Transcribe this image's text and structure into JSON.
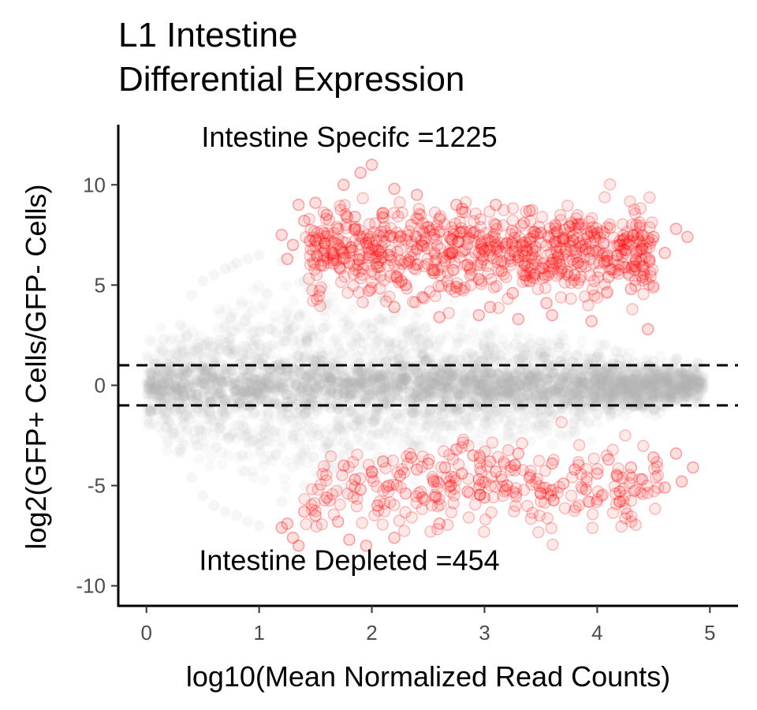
{
  "chart_data": {
    "type": "scatter",
    "title_lines": [
      "L1 Intestine",
      "Differential Expression"
    ],
    "xlabel": "log10(Mean Normalized Read Counts)",
    "ylabel": "log2(GFP+ Cells/GFP- Cells)",
    "xlim": [
      -0.25,
      5.25
    ],
    "ylim": [
      -11,
      13
    ],
    "x_ticks": [
      0,
      1,
      2,
      3,
      4,
      5
    ],
    "x_tick_labels": [
      "0",
      "1",
      "2",
      "3",
      "4",
      "5"
    ],
    "y_ticks": [
      -10,
      -5,
      0,
      5,
      10
    ],
    "y_tick_labels": [
      "-10",
      "-5",
      "0",
      "5",
      "10"
    ],
    "grid": false,
    "threshold_lines": [
      1,
      -1
    ],
    "annotations": [
      {
        "text": "Intestine Specifc =1225",
        "x": 1.8,
        "y": 11.9
      },
      {
        "text": "Intestine Depleted =454",
        "x": 1.8,
        "y": -9.2
      }
    ],
    "colors": {
      "background_points": "#b3b3b3",
      "significant_points": "#ff0000",
      "threshold_line": "#000000"
    },
    "series": [
      {
        "role": "not-significant",
        "description_points": "dense grey cloud, |log2FC| mostly < 5, x from 0 to 5",
        "points": [
          [
            0.0,
            0.0
          ],
          [
            0.05,
            0.5
          ],
          [
            0.1,
            -0.6
          ],
          [
            0.2,
            1.5
          ],
          [
            0.2,
            -1.8
          ],
          [
            0.3,
            3.0
          ],
          [
            0.3,
            -3.2
          ],
          [
            0.4,
            4.5
          ],
          [
            0.4,
            -4.6
          ],
          [
            0.5,
            5.2
          ],
          [
            0.5,
            -5.5
          ],
          [
            0.6,
            5.5
          ],
          [
            0.7,
            5.8
          ],
          [
            0.8,
            6.1
          ],
          [
            0.9,
            6.3
          ],
          [
            1.0,
            6.5
          ],
          [
            0.6,
            -6.0
          ],
          [
            0.7,
            -6.3
          ],
          [
            0.8,
            -6.5
          ],
          [
            0.9,
            -6.8
          ],
          [
            1.0,
            -7.0
          ],
          [
            1.2,
            6.2
          ],
          [
            1.4,
            5.2
          ],
          [
            1.6,
            4.0
          ],
          [
            1.8,
            3.0
          ],
          [
            2.0,
            2.5
          ],
          [
            1.2,
            -5.8
          ],
          [
            1.4,
            -5.0
          ],
          [
            1.6,
            -4.0
          ],
          [
            1.8,
            -3.0
          ],
          [
            2.0,
            -2.5
          ],
          [
            2.5,
            2.0
          ],
          [
            3.0,
            1.8
          ],
          [
            3.5,
            1.6
          ],
          [
            4.0,
            1.4
          ],
          [
            4.5,
            1.2
          ],
          [
            4.9,
            0.9
          ],
          [
            2.5,
            -2.0
          ],
          [
            3.0,
            -1.8
          ],
          [
            3.5,
            -1.6
          ],
          [
            4.0,
            -1.4
          ],
          [
            4.5,
            -1.2
          ],
          [
            4.9,
            -0.9
          ],
          [
            0.15,
            2.3
          ],
          [
            0.25,
            -2.4
          ],
          [
            0.35,
            0.9
          ],
          [
            0.45,
            -0.9
          ],
          [
            0.55,
            2.2
          ],
          [
            0.65,
            -2.1
          ],
          [
            0.75,
            3.4
          ],
          [
            0.85,
            -3.5
          ],
          [
            0.95,
            0.3
          ],
          [
            1.05,
            -0.3
          ],
          [
            1.1,
            2.8
          ],
          [
            1.3,
            -2.7
          ],
          [
            1.5,
            1.2
          ],
          [
            1.7,
            -1.1
          ],
          [
            1.9,
            0.6
          ],
          [
            2.1,
            -0.7
          ],
          [
            2.3,
            1.0
          ],
          [
            2.7,
            -1.0
          ],
          [
            3.2,
            0.5
          ],
          [
            3.8,
            -0.4
          ],
          [
            4.2,
            0.3
          ],
          [
            4.7,
            -0.2
          ]
        ]
      },
      {
        "role": "intestine-specific",
        "count": 1225,
        "points": [
          [
            1.2,
            7.5
          ],
          [
            1.25,
            6.3
          ],
          [
            1.3,
            7.0
          ],
          [
            1.35,
            9.0
          ],
          [
            1.4,
            8.2
          ],
          [
            1.45,
            7.2
          ],
          [
            1.5,
            9.1
          ],
          [
            1.55,
            6.0
          ],
          [
            1.6,
            8.5
          ],
          [
            1.65,
            6.6
          ],
          [
            1.7,
            7.8
          ],
          [
            1.75,
            10.0
          ],
          [
            1.8,
            6.1
          ],
          [
            1.85,
            8.4
          ],
          [
            1.9,
            10.6
          ],
          [
            1.95,
            7.1
          ],
          [
            2.0,
            11.0
          ],
          [
            2.05,
            5.9
          ],
          [
            2.1,
            8.6
          ],
          [
            2.15,
            6.5
          ],
          [
            2.2,
            9.8
          ],
          [
            2.25,
            7.4
          ],
          [
            2.3,
            5.0
          ],
          [
            2.35,
            8.0
          ],
          [
            2.4,
            6.8
          ],
          [
            2.45,
            4.4
          ],
          [
            2.5,
            7.9
          ],
          [
            2.55,
            5.6
          ],
          [
            2.6,
            8.3
          ],
          [
            2.65,
            6.2
          ],
          [
            2.7,
            7.3
          ],
          [
            2.75,
            4.9
          ],
          [
            2.8,
            8.8
          ],
          [
            2.85,
            6.0
          ],
          [
            2.9,
            7.6
          ],
          [
            2.95,
            5.3
          ],
          [
            3.0,
            6.7
          ],
          [
            3.05,
            3.9
          ],
          [
            3.1,
            8.0
          ],
          [
            3.15,
            5.7
          ],
          [
            3.2,
            7.1
          ],
          [
            3.25,
            4.6
          ],
          [
            3.3,
            6.4
          ],
          [
            3.35,
            8.1
          ],
          [
            3.4,
            5.2
          ],
          [
            3.45,
            6.9
          ],
          [
            3.5,
            7.6
          ],
          [
            3.55,
            4.1
          ],
          [
            3.6,
            6.1
          ],
          [
            3.7,
            7.3
          ],
          [
            3.8,
            5.5
          ],
          [
            3.9,
            6.8
          ],
          [
            4.0,
            7.6
          ],
          [
            4.1,
            5.4
          ],
          [
            4.2,
            7.0
          ],
          [
            4.3,
            4.8
          ],
          [
            4.4,
            6.8
          ],
          [
            4.5,
            7.4
          ],
          [
            4.6,
            6.6
          ],
          [
            4.7,
            7.8
          ],
          [
            4.8,
            7.4
          ],
          [
            2.2,
            3.9
          ],
          [
            2.6,
            3.4
          ],
          [
            2.95,
            3.5
          ],
          [
            3.3,
            3.3
          ],
          [
            3.6,
            3.5
          ],
          [
            3.95,
            3.2
          ],
          [
            2.4,
            9.5
          ],
          [
            2.75,
            9.0
          ],
          [
            3.1,
            9.0
          ],
          [
            3.4,
            8.7
          ],
          [
            4.45,
            2.8
          ]
        ]
      },
      {
        "role": "intestine-depleted",
        "count": 454,
        "points": [
          [
            1.2,
            -7.1
          ],
          [
            1.25,
            -6.9
          ],
          [
            1.3,
            -7.6
          ],
          [
            1.35,
            -8.0
          ],
          [
            1.4,
            -6.3
          ],
          [
            1.5,
            -6.5
          ],
          [
            1.6,
            -5.6
          ],
          [
            1.7,
            -6.8
          ],
          [
            1.75,
            -4.0
          ],
          [
            1.8,
            -7.7
          ],
          [
            1.85,
            -4.7
          ],
          [
            1.9,
            -5.2
          ],
          [
            1.95,
            -8.0
          ],
          [
            2.0,
            -4.3
          ],
          [
            2.05,
            -6.0
          ],
          [
            2.1,
            -3.8
          ],
          [
            2.15,
            -5.0
          ],
          [
            2.2,
            -7.6
          ],
          [
            2.25,
            -4.5
          ],
          [
            2.3,
            -5.4
          ],
          [
            2.35,
            -3.6
          ],
          [
            2.4,
            -4.2
          ],
          [
            2.45,
            -5.6
          ],
          [
            2.5,
            -3.9
          ],
          [
            2.55,
            -4.8
          ],
          [
            2.6,
            -6.9
          ],
          [
            2.65,
            -4.1
          ],
          [
            2.7,
            -5.0
          ],
          [
            2.75,
            -3.2
          ],
          [
            2.8,
            -4.4
          ],
          [
            2.85,
            -5.3
          ],
          [
            2.9,
            -3.5
          ],
          [
            2.95,
            -4.7
          ],
          [
            3.0,
            -5.6
          ],
          [
            3.05,
            -3.8
          ],
          [
            3.1,
            -4.3
          ],
          [
            3.2,
            -5.0
          ],
          [
            3.3,
            -3.4
          ],
          [
            3.4,
            -4.6
          ],
          [
            3.5,
            -5.4
          ],
          [
            3.6,
            -3.9
          ],
          [
            3.7,
            -4.9
          ],
          [
            3.8,
            -4.2
          ],
          [
            3.9,
            -5.2
          ],
          [
            4.0,
            -4.4
          ],
          [
            4.1,
            -3.7
          ],
          [
            4.2,
            -5.3
          ],
          [
            4.3,
            -4.1
          ],
          [
            4.4,
            -4.7
          ],
          [
            4.5,
            -3.6
          ],
          [
            4.6,
            -5.1
          ],
          [
            4.75,
            -4.8
          ],
          [
            4.85,
            -4.1
          ],
          [
            4.7,
            -3.4
          ]
        ]
      }
    ]
  }
}
